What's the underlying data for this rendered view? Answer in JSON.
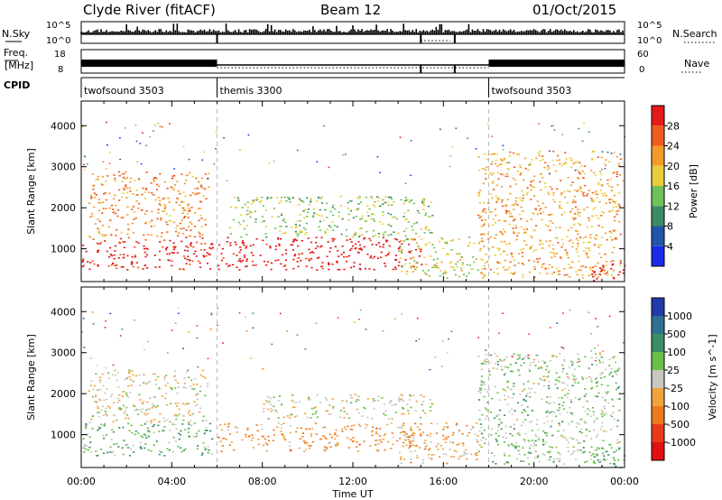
{
  "header": {
    "title": "Clyde River (fitACF)",
    "beam": "Beam 12",
    "date": "01/Oct/2015"
  },
  "top_panels": {
    "nsky_label": "N.Sky",
    "nsky_ticks": [
      "10^5",
      "10^0"
    ],
    "nsearch_label": "N.Search",
    "nsearch_ticks": [
      "10^5",
      "10^0"
    ],
    "freq_label_1": "Freq.",
    "freq_label_2": "[MHz]",
    "freq_ticks": [
      "18",
      "8"
    ],
    "nave_label": "Nave",
    "nave_ticks": [
      "60",
      "0"
    ],
    "cpid_label": "CPID",
    "cpid_segments": [
      {
        "name": "twofsound 3503",
        "start": 0,
        "end": 6
      },
      {
        "name": "themis 3300",
        "start": 6,
        "end": 18
      },
      {
        "name": "twofsound 3503",
        "start": 18,
        "end": 24
      }
    ]
  },
  "axes": {
    "ylabel": "Slant Range [km]",
    "xlabel": "Time UT",
    "yticks": [
      "1000",
      "2000",
      "3000",
      "4000"
    ],
    "xticks": [
      "00:00",
      "04:00",
      "08:00",
      "12:00",
      "16:00",
      "20:00",
      "00:00"
    ]
  },
  "power_colorbar": {
    "label": "Power [dB]",
    "ticks": [
      "4",
      "8",
      "12",
      "16",
      "20",
      "24",
      "28"
    ],
    "colors": [
      "#1a2be8",
      "#2255a8",
      "#3c8a64",
      "#6fc25a",
      "#e8cf38",
      "#f39b2a",
      "#ef5b1e",
      "#e41a1a"
    ]
  },
  "velocity_colorbar": {
    "label": "Velocity [m s^-1]",
    "ticks": [
      "1000",
      "500",
      "100",
      "25",
      "-25",
      "-100",
      "-500",
      "-1000"
    ],
    "colors": [
      "#223aa8",
      "#2f6f8f",
      "#3b8f68",
      "#6cc04a",
      "#c8c8c0",
      "#f2a23a",
      "#ee7a1e",
      "#e83a1a",
      "#e01010"
    ]
  },
  "chart_data": [
    {
      "type": "heatmap",
      "title": "Power",
      "xlabel": "Time UT",
      "ylabel": "Slant Range [km]",
      "xlim": [
        0,
        24
      ],
      "ylim": [
        200,
        4600
      ],
      "colorbar_label": "Power [dB]",
      "colorbar_range": [
        0,
        30
      ],
      "regions": [
        {
          "x": [
            0,
            5.8
          ],
          "y": [
            500,
            1300
          ],
          "value": 28
        },
        {
          "x": [
            0.3,
            5.6
          ],
          "y": [
            1300,
            2900
          ],
          "value": 22
        },
        {
          "x": [
            6,
            15
          ],
          "y": [
            500,
            1300
          ],
          "value": 30
        },
        {
          "x": [
            6.5,
            15.5
          ],
          "y": [
            1300,
            2300
          ],
          "value": 14
        },
        {
          "x": [
            14,
            17.5
          ],
          "y": [
            300,
            1300
          ],
          "value": 16
        },
        {
          "x": [
            17.5,
            23.8
          ],
          "y": [
            300,
            3400
          ],
          "value": 20
        },
        {
          "x": [
            22.5,
            24
          ],
          "y": [
            200,
            700
          ],
          "value": 29
        }
      ]
    },
    {
      "type": "heatmap",
      "title": "Velocity",
      "xlabel": "Time UT",
      "ylabel": "Slant Range [km]",
      "xlim": [
        0,
        24
      ],
      "ylim": [
        200,
        4600
      ],
      "colorbar_label": "Velocity [m s^-1]",
      "colorbar_range": [
        -1000,
        1000
      ],
      "regions": [
        {
          "x": [
            0,
            5.8
          ],
          "y": [
            500,
            1300
          ],
          "value": 250
        },
        {
          "x": [
            0.3,
            5.6
          ],
          "y": [
            1300,
            2600
          ],
          "value": 0
        },
        {
          "x": [
            6,
            15
          ],
          "y": [
            600,
            1300
          ],
          "value": -300
        },
        {
          "x": [
            8,
            15.5
          ],
          "y": [
            1400,
            2000
          ],
          "value": 0
        },
        {
          "x": [
            14,
            17.5
          ],
          "y": [
            300,
            1300
          ],
          "value": -200
        },
        {
          "x": [
            17.5,
            23.8
          ],
          "y": [
            300,
            3000
          ],
          "value": 150
        },
        {
          "x": [
            22.5,
            24
          ],
          "y": [
            200,
            700
          ],
          "value": 400
        }
      ]
    }
  ]
}
